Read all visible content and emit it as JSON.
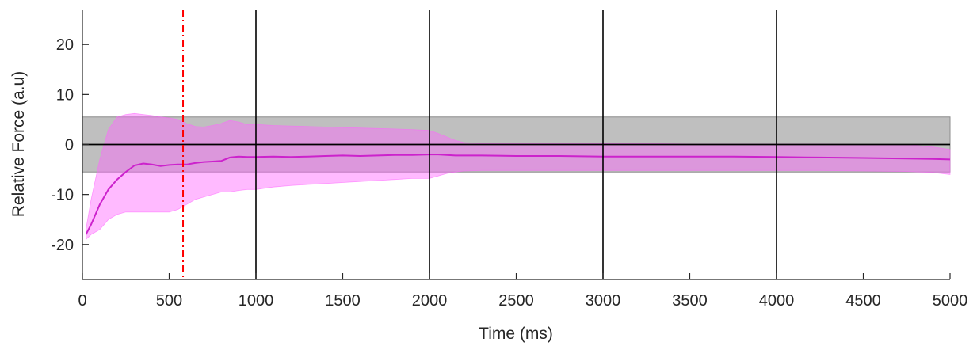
{
  "chart_data": {
    "type": "line",
    "title": "",
    "xlabel": "Time (ms)",
    "ylabel": "Relative Force (a.u)",
    "xlim": [
      0,
      5000
    ],
    "ylim": [
      -27,
      27
    ],
    "x_ticks": [
      0,
      500,
      1000,
      1500,
      2000,
      2500,
      3000,
      3500,
      4000,
      4500,
      5000
    ],
    "y_ticks": [
      20,
      10,
      0,
      -10,
      -20
    ],
    "grid": false,
    "legend": "none",
    "reference_band": {
      "y_low": -5.5,
      "y_high": 5.5,
      "color": "#bfbfbf"
    },
    "zero_line": {
      "y": 0,
      "color": "#000000"
    },
    "vertical_lines": [
      {
        "x": 1000,
        "color": "#000000",
        "style": "solid"
      },
      {
        "x": 2000,
        "color": "#000000",
        "style": "solid"
      },
      {
        "x": 3000,
        "color": "#000000",
        "style": "solid"
      },
      {
        "x": 4000,
        "color": "#000000",
        "style": "solid"
      },
      {
        "x": 580,
        "color": "#ff0000",
        "style": "dash-dot"
      }
    ],
    "series": [
      {
        "color": "#cc22cc",
        "band_color": "#ff66ff",
        "x": [
          20,
          50,
          100,
          150,
          200,
          250,
          300,
          350,
          400,
          450,
          500,
          550,
          600,
          650,
          700,
          750,
          800,
          850,
          900,
          950,
          1000,
          1100,
          1200,
          1300,
          1400,
          1500,
          1600,
          1700,
          1800,
          1900,
          2000,
          2050,
          2100,
          2150,
          2200,
          2300,
          2500,
          2750,
          3000,
          3250,
          3500,
          3750,
          4000,
          4250,
          4500,
          4750,
          4900,
          5000
        ],
        "mean": [
          -18,
          -16,
          -12,
          -9,
          -7,
          -5.5,
          -4.2,
          -3.8,
          -4,
          -4.3,
          -4.1,
          -4,
          -4,
          -3.7,
          -3.5,
          -3.4,
          -3.3,
          -2.6,
          -2.4,
          -2.5,
          -2.5,
          -2.4,
          -2.5,
          -2.4,
          -2.3,
          -2.2,
          -2.3,
          -2.2,
          -2.1,
          -2.1,
          -2.0,
          -2.0,
          -2.1,
          -2.2,
          -2.2,
          -2.2,
          -2.3,
          -2.3,
          -2.4,
          -2.4,
          -2.4,
          -2.4,
          -2.5,
          -2.6,
          -2.7,
          -2.8,
          -2.9,
          -3.0
        ],
        "upper": [
          -17,
          -11,
          -3,
          3,
          5.5,
          6.0,
          6.2,
          6.0,
          5.8,
          5.5,
          5.3,
          5.0,
          4.2,
          3.6,
          3.5,
          3.8,
          4.2,
          4.8,
          4.5,
          4.0,
          4.0,
          3.8,
          3.7,
          3.6,
          3.5,
          3.4,
          3.3,
          3.2,
          3.1,
          3.0,
          2.8,
          2.2,
          1.5,
          0.8,
          0.4,
          0.2,
          0.2,
          0.2,
          0.2,
          0.2,
          0.1,
          0.1,
          0.1,
          0.1,
          0.0,
          0.0,
          -0.5,
          -1.0
        ],
        "lower": [
          -19,
          -18,
          -17,
          -15,
          -14,
          -13.5,
          -13.5,
          -13.5,
          -13.5,
          -13.5,
          -13.5,
          -13,
          -12,
          -11,
          -10.5,
          -10,
          -9.5,
          -9.5,
          -9.2,
          -9.0,
          -9.0,
          -8.5,
          -8.2,
          -8.0,
          -7.8,
          -7.6,
          -7.4,
          -7.2,
          -7.0,
          -6.8,
          -6.8,
          -6.3,
          -5.8,
          -5.5,
          -5.3,
          -5.2,
          -5.2,
          -5.2,
          -5.2,
          -5.2,
          -5.2,
          -5.2,
          -5.2,
          -5.2,
          -5.3,
          -5.4,
          -5.6,
          -6.0
        ]
      }
    ]
  }
}
